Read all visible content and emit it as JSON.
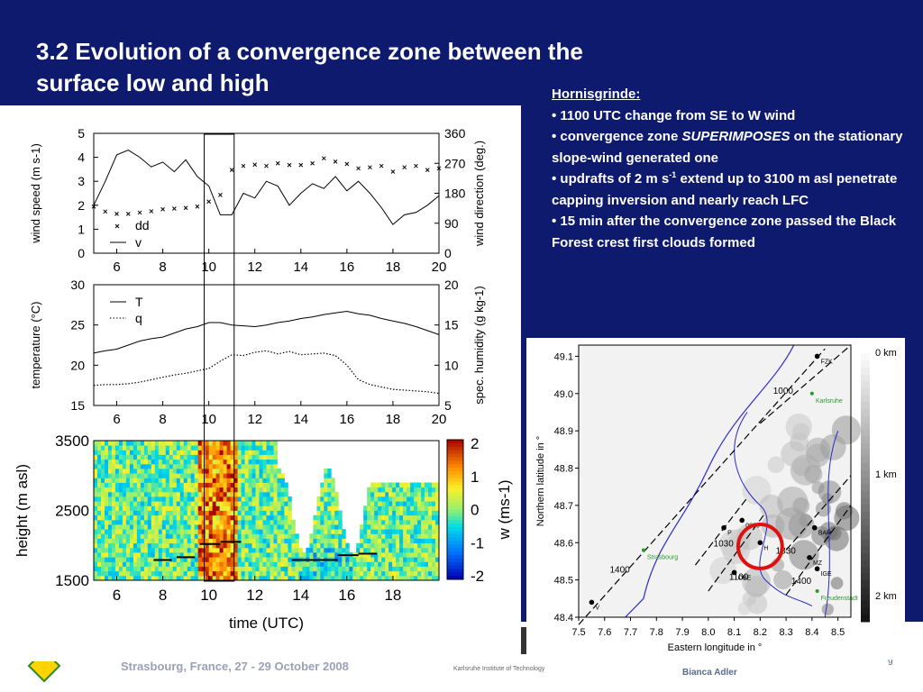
{
  "slide": {
    "title_line1": "3.2 Evolution of a convergence zone between the",
    "title_line2": "surface low and high",
    "page_number": "9",
    "footer_venue": "Strasbourg, France, 27 - 29 October 2008",
    "footer_institute": "Karlsruhe Institute of Technology",
    "footer_author": "Bianca Adler"
  },
  "notes": {
    "heading": "Hornisgrinde:",
    "bullet1": "• 1100 UTC change from SE to W wind",
    "bullet2_pre": "• convergence zone ",
    "bullet2_emph": "SUPERIMPOSES",
    "bullet2_post": " on the stationary slope-wind generated one",
    "bullet3_pre": "• updrafts of 2 m s",
    "bullet3_sup": "-1",
    "bullet3_post": " extend up to 3100 m asl penetrate capping inversion and nearly reach LFC",
    "bullet4": "• 15 min after the convergence zone passed the Black Forest crest first clouds formed"
  },
  "chart_data": [
    {
      "type": "line",
      "ylabel": "wind speed (m s-1)",
      "y2label": "wind direction (deg.)",
      "xticks": [
        "6",
        "8",
        "10",
        "12",
        "14",
        "16",
        "18",
        "20"
      ],
      "yticks": [
        "0",
        "1",
        "2",
        "3",
        "4",
        "5"
      ],
      "y2ticks": [
        "0",
        "90",
        "180",
        "270",
        "360"
      ],
      "xlim": [
        5,
        20
      ],
      "ylim": [
        0,
        5
      ],
      "y2lim": [
        0,
        360
      ],
      "series": [
        {
          "name": "v",
          "style": "line",
          "x": [
            5,
            5.5,
            6,
            6.5,
            7,
            7.5,
            8,
            8.5,
            9,
            9.5,
            10,
            10.5,
            11,
            11.5,
            12,
            12.5,
            13,
            13.5,
            14,
            14.5,
            15,
            15.5,
            16,
            16.5,
            17,
            17.5,
            18,
            18.5,
            19,
            19.5,
            20
          ],
          "y": [
            2.0,
            3.0,
            4.1,
            4.3,
            4.0,
            3.6,
            3.8,
            3.4,
            3.9,
            3.2,
            2.8,
            1.6,
            1.6,
            2.5,
            2.3,
            3.0,
            2.8,
            2.0,
            2.5,
            2.9,
            2.7,
            3.2,
            2.6,
            3.0,
            2.5,
            1.9,
            1.2,
            1.6,
            1.7,
            2.0,
            2.4
          ]
        },
        {
          "name": "dd",
          "style": "markers",
          "x": [
            5,
            5.5,
            6,
            6.5,
            7,
            7.5,
            8,
            8.5,
            9,
            9.5,
            10,
            10.5,
            11,
            11.5,
            12,
            12.5,
            13,
            13.5,
            14,
            14.5,
            15,
            15.5,
            16,
            16.5,
            17,
            17.5,
            18,
            18.5,
            19,
            19.5,
            20
          ],
          "y": [
            140,
            125,
            118,
            118,
            122,
            126,
            132,
            134,
            136,
            140,
            155,
            175,
            250,
            262,
            266,
            262,
            270,
            265,
            265,
            270,
            285,
            275,
            268,
            255,
            258,
            262,
            245,
            258,
            262,
            250,
            255
          ]
        }
      ],
      "vline_x": [
        9.8,
        11.1
      ]
    },
    {
      "type": "line",
      "ylabel": "temperature (°C)",
      "y2label": "spec. humidity (g kg-1)",
      "xticks": [
        "6",
        "8",
        "10",
        "12",
        "14",
        "16",
        "18",
        "20"
      ],
      "yticks": [
        "15",
        "20",
        "25",
        "30"
      ],
      "y2ticks": [
        "5",
        "10",
        "15",
        "20"
      ],
      "xlim": [
        5,
        20
      ],
      "ylim": [
        15,
        30
      ],
      "y2lim": [
        5,
        20
      ],
      "series": [
        {
          "name": "T",
          "style": "solid",
          "x": [
            5,
            5.5,
            6,
            6.5,
            7,
            7.5,
            8,
            8.5,
            9,
            9.5,
            10,
            10.5,
            11,
            11.5,
            12,
            12.5,
            13,
            13.5,
            14,
            14.5,
            15,
            15.5,
            16,
            16.5,
            17,
            17.5,
            18,
            18.5,
            19,
            19.5,
            20
          ],
          "y": [
            21.5,
            21.8,
            22.0,
            22.5,
            23.0,
            23.3,
            23.5,
            24.0,
            24.5,
            24.8,
            25.3,
            25.3,
            25.0,
            24.9,
            24.8,
            25.0,
            25.3,
            25.5,
            25.8,
            26.0,
            26.3,
            26.5,
            26.7,
            26.4,
            26.2,
            25.8,
            25.5,
            25.2,
            24.8,
            24.3,
            23.8
          ]
        },
        {
          "name": "q",
          "style": "dotted",
          "x": [
            5,
            5.5,
            6,
            6.5,
            7,
            7.5,
            8,
            8.5,
            9,
            9.5,
            10,
            10.5,
            11,
            11.5,
            12,
            12.5,
            13,
            13.5,
            14,
            14.5,
            15,
            15.5,
            16,
            16.5,
            17,
            17.5,
            18,
            18.5,
            19,
            19.5,
            20
          ],
          "y": [
            7.5,
            7.6,
            7.6,
            7.7,
            7.9,
            8.2,
            8.5,
            8.8,
            9.0,
            9.3,
            9.6,
            10.5,
            11.3,
            11.2,
            11.6,
            11.8,
            11.4,
            11.7,
            11.3,
            11.4,
            11.5,
            11.2,
            10.0,
            8.2,
            7.6,
            7.3,
            7.0,
            6.9,
            6.8,
            6.7,
            6.5
          ]
        }
      ],
      "vline_x": [
        9.8,
        11.1
      ]
    },
    {
      "type": "heatmap",
      "ylabel": "height (m asl)",
      "xlabel": "time (UTC)",
      "xticks": [
        "6",
        "8",
        "10",
        "12",
        "14",
        "16",
        "18"
      ],
      "yticks": [
        "1500",
        "2500",
        "3500"
      ],
      "xlim": [
        5,
        20
      ],
      "ylim": [
        1500,
        3500
      ],
      "colorbar_label": "w (ms-1)",
      "colorbar_ticks": [
        "-2",
        "-1",
        "0",
        "1",
        "2"
      ],
      "colorbar_range": [
        -2,
        2
      ],
      "cloud_base_segments": [
        {
          "x0": 7.6,
          "x1": 8.4,
          "h": 1790
        },
        {
          "x0": 8.6,
          "x1": 9.4,
          "h": 1830
        },
        {
          "x0": 9.6,
          "x1": 10.5,
          "h": 2020
        },
        {
          "x0": 10.5,
          "x1": 11.4,
          "h": 2050
        },
        {
          "x0": 13.6,
          "x1": 14.5,
          "h": 1790
        },
        {
          "x0": 14.5,
          "x1": 15.6,
          "h": 1790
        },
        {
          "x0": 15.6,
          "x1": 16.5,
          "h": 1860
        },
        {
          "x0": 16.5,
          "x1": 17.3,
          "h": 1880
        }
      ],
      "vline_x": [
        9.8,
        11.1
      ]
    },
    {
      "type": "scatter",
      "xlabel": "Eastern longitude in °",
      "ylabel": "Northern latitude in °",
      "xticks": [
        "7.5",
        "7.6",
        "7.7",
        "7.8",
        "7.9",
        "8.0",
        "8.1",
        "8.2",
        "8.3",
        "8.4",
        "8.5"
      ],
      "yticks": [
        "48.4",
        "48.5",
        "48.6",
        "48.7",
        "48.8",
        "48.9",
        "49.0",
        "49.1"
      ],
      "xlim": [
        7.5,
        8.55
      ],
      "ylim": [
        48.4,
        49.13
      ],
      "elevation_scale": [
        "0 km",
        "1 km",
        "2 km"
      ],
      "stations": [
        {
          "label": "FZK",
          "lon": 8.42,
          "lat": 49.1,
          "style": "black"
        },
        {
          "label": "Karlsruhe",
          "lon": 8.4,
          "lat": 49.0,
          "style": "green"
        },
        {
          "label": "Strasbourg",
          "lon": 7.75,
          "lat": 48.58,
          "style": "green"
        },
        {
          "label": "Freudenstadt",
          "lon": 8.42,
          "lat": 48.47,
          "style": "green"
        },
        {
          "label": "V",
          "lon": 7.55,
          "lat": 48.44,
          "style": "black"
        },
        {
          "label": "BAR",
          "lon": 8.41,
          "lat": 48.64,
          "style": "black"
        },
        {
          "label": "MZ",
          "lon": 8.39,
          "lat": 48.56,
          "style": "black"
        },
        {
          "label": "IGE",
          "lon": 8.42,
          "lat": 48.53,
          "style": "black"
        },
        {
          "label": "OBE",
          "lon": 8.1,
          "lat": 48.52,
          "style": "black"
        },
        {
          "label": "P",
          "lon": 8.06,
          "lat": 48.64,
          "style": "black"
        },
        {
          "label": "H",
          "lon": 8.2,
          "lat": 48.6,
          "style": "black"
        },
        {
          "label": "0800",
          "lon": 8.13,
          "lat": 48.66,
          "style": "black"
        }
      ],
      "front_labels": [
        "1400",
        "1000",
        "1030",
        "1100",
        "1330",
        "1400"
      ],
      "highlight": {
        "lon": 8.2,
        "lat": 48.59,
        "radius_deg": 0.085
      }
    }
  ]
}
